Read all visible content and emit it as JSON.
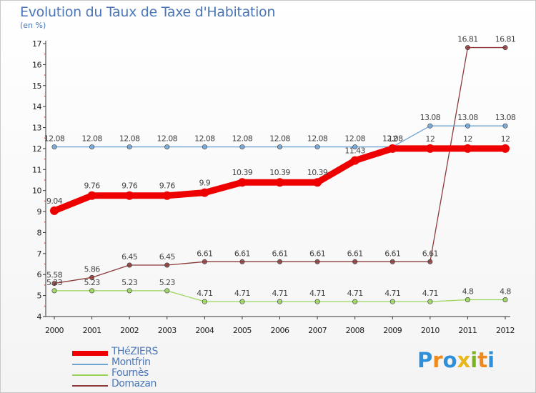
{
  "title": "Evolution du Taux de Taxe d'Habitation",
  "unit_label": "(en %)",
  "logo": {
    "letters": [
      "P",
      "r",
      "o",
      "x",
      "i",
      "t",
      "i"
    ],
    "colors": [
      "#2f8fd8",
      "#ef8a1f",
      "#2f8fd8",
      "#e8b81a",
      "#7ab51d",
      "#ef8a1f",
      "#2f8fd8"
    ]
  },
  "chart_data": {
    "type": "line",
    "title": "Evolution du Taux de Taxe d'Habitation",
    "ylabel": "(en %)",
    "xlabel": "",
    "x": [
      "2000",
      "2001",
      "2002",
      "2003",
      "2004",
      "2005",
      "2006",
      "2007",
      "2008",
      "2009",
      "2010",
      "2011",
      "2012"
    ],
    "ylim": [
      4,
      17
    ],
    "yticks": [
      4,
      5,
      6,
      7,
      8,
      9,
      10,
      11,
      12,
      13,
      14,
      15,
      16,
      17
    ],
    "grid": false,
    "legend_position": "bottom-left",
    "series": [
      {
        "name": "THéZIERS",
        "color": "#ee0000",
        "values": [
          9.04,
          9.76,
          9.76,
          9.76,
          9.9,
          10.39,
          10.39,
          10.39,
          11.43,
          12,
          12,
          12,
          12
        ],
        "labels": [
          "9.04",
          "9.76",
          "9.76",
          "9.76",
          "9.9",
          "10.39",
          "10.39",
          "10.39",
          "11.43",
          "12",
          "12",
          "12",
          "12"
        ]
      },
      {
        "name": "Montfrin",
        "color": "#6fa3d2",
        "values": [
          12.08,
          12.08,
          12.08,
          12.08,
          12.08,
          12.08,
          12.08,
          12.08,
          12.08,
          12.08,
          13.08,
          13.08,
          13.08
        ],
        "labels": [
          "12.08",
          "12.08",
          "12.08",
          "12.08",
          "12.08",
          "12.08",
          "12.08",
          "12.08",
          "12.08",
          "12.08",
          "13.08",
          "13.08",
          "13.08"
        ]
      },
      {
        "name": "Fournès",
        "color": "#99d55a",
        "values": [
          5.23,
          5.23,
          5.23,
          5.23,
          4.71,
          4.71,
          4.71,
          4.71,
          4.71,
          4.71,
          4.71,
          4.8,
          4.8
        ],
        "labels": [
          "5.23",
          "5.23",
          "5.23",
          "5.23",
          "4.71",
          "4.71",
          "4.71",
          "4.71",
          "4.71",
          "4.71",
          "4.71",
          "4.8",
          "4.8"
        ]
      },
      {
        "name": "Domazan",
        "color": "#8c3a3a",
        "values": [
          5.58,
          5.86,
          6.45,
          6.45,
          6.61,
          6.61,
          6.61,
          6.61,
          6.61,
          6.61,
          6.61,
          16.81,
          16.81
        ],
        "labels": [
          "5.58",
          "5.86",
          "6.45",
          "6.45",
          "6.61",
          "6.61",
          "6.61",
          "6.61",
          "6.61",
          "6.61",
          "6.61",
          "16.81",
          "16.81"
        ]
      }
    ]
  }
}
